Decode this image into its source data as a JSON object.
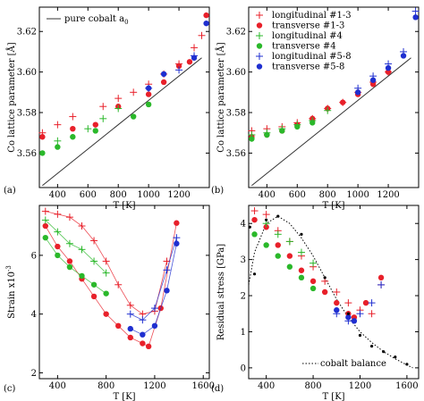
{
  "panels": [
    {
      "id": "a",
      "label": "(a)",
      "xlabel": "T [K]",
      "ylabel": "Co lattice parameter [Å]",
      "xticks": [
        "400",
        "600",
        "800",
        "1000",
        "1200"
      ],
      "yticks": [
        "3.56",
        "3.58",
        "3.60",
        "3.62"
      ],
      "legend": [
        {
          "label": "pure cobalt a",
          "sub": "0",
          "marker": "line"
        }
      ]
    },
    {
      "id": "b",
      "label": "(b)",
      "xlabel": "T [K]",
      "ylabel": "Co lattice parameter [Å]",
      "xticks": [
        "400",
        "600",
        "800",
        "1000",
        "1200"
      ],
      "yticks": [
        "3.56",
        "3.58",
        "3.60",
        "3.62"
      ],
      "legend": [
        {
          "label": "longitudinal #1-3",
          "marker": "plus-red"
        },
        {
          "label": "transverse #1-3",
          "marker": "circle-red"
        },
        {
          "label": "longitudinal #4",
          "marker": "plus-green"
        },
        {
          "label": "transverse #4",
          "marker": "circle-green"
        },
        {
          "label": "longitudinal #5-8",
          "marker": "plus-blue"
        },
        {
          "label": "transverse #5-8",
          "marker": "circle-blue"
        }
      ]
    },
    {
      "id": "c",
      "label": "(c)",
      "xlabel": "T [K]",
      "ylabel": "Strain x10",
      "ylabel_sup": "-3",
      "xticks": [
        "400",
        "800",
        "1200",
        "1600"
      ],
      "yticks": [
        "2",
        "4",
        "6"
      ],
      "legend": []
    },
    {
      "id": "d",
      "label": "(d)",
      "xlabel": "T [K]",
      "ylabel": "Residual stress [GPa]",
      "xticks": [
        "400",
        "800",
        "1200",
        "1600"
      ],
      "yticks": [
        "0",
        "1",
        "2",
        "3",
        "4"
      ],
      "legend": [
        {
          "label": "cobalt balance",
          "marker": "dotted"
        }
      ]
    }
  ],
  "colors": {
    "red": "#e8202a",
    "green": "#2ab82a",
    "blue": "#1f2fd0",
    "black": "#000000",
    "curve": "#333333"
  },
  "chart_data": [
    {
      "type": "scatter",
      "panel": "a",
      "xlim": [
        280,
        1400
      ],
      "ylim": [
        3.543,
        3.632
      ],
      "series": [
        {
          "name": "pure cobalt a0",
          "style": "line",
          "x": [
            300,
            500,
            700,
            900,
            1100,
            1300,
            1350
          ],
          "y": [
            3.544,
            3.556,
            3.568,
            3.58,
            3.592,
            3.604,
            3.607
          ]
        },
        {
          "name": "longitudinal #1-3",
          "style": "plus",
          "color": "red",
          "x": [
            300,
            400,
            500,
            700,
            800,
            900,
            1000,
            1100,
            1200,
            1300,
            1350
          ],
          "y": [
            3.57,
            3.574,
            3.578,
            3.583,
            3.587,
            3.59,
            3.594,
            3.599,
            3.604,
            3.612,
            3.618
          ]
        },
        {
          "name": "transverse #1-3",
          "style": "circle",
          "color": "red",
          "x": [
            300,
            500,
            650,
            800,
            1000,
            1100,
            1200,
            1270,
            1380
          ],
          "y": [
            3.568,
            3.572,
            3.574,
            3.583,
            3.589,
            3.595,
            3.603,
            3.605,
            3.628
          ]
        },
        {
          "name": "longitudinal #4",
          "style": "plus",
          "color": "green",
          "x": [
            400,
            600,
            700,
            800
          ],
          "y": [
            3.566,
            3.572,
            3.577,
            3.582
          ]
        },
        {
          "name": "transverse #4",
          "style": "circle",
          "color": "green",
          "x": [
            300,
            400,
            500,
            650,
            900,
            1000
          ],
          "y": [
            3.56,
            3.563,
            3.568,
            3.571,
            3.578,
            3.584
          ]
        },
        {
          "name": "longitudinal #5-8",
          "style": "plus",
          "color": "blue",
          "x": [
            1000,
            1200,
            1300
          ],
          "y": [
            3.592,
            3.601,
            3.608
          ]
        },
        {
          "name": "transverse #5-8",
          "style": "circle",
          "color": "blue",
          "x": [
            1000,
            1100,
            1300,
            1380
          ],
          "y": [
            3.592,
            3.599,
            3.607,
            3.624
          ]
        }
      ]
    },
    {
      "type": "scatter",
      "panel": "b",
      "xlim": [
        280,
        1400
      ],
      "ylim": [
        3.543,
        3.632
      ],
      "series": [
        {
          "name": "pure cobalt a0",
          "style": "line",
          "x": [
            300,
            500,
            700,
            900,
            1100,
            1300,
            1350
          ],
          "y": [
            3.544,
            3.556,
            3.568,
            3.58,
            3.592,
            3.604,
            3.607
          ]
        },
        {
          "name": "longitudinal #1-3",
          "style": "plus",
          "color": "red",
          "x": [
            300,
            400,
            500,
            600,
            700,
            800,
            900,
            1000,
            1100,
            1200
          ],
          "y": [
            3.571,
            3.572,
            3.573,
            3.575,
            3.577,
            3.582,
            3.585,
            3.59,
            3.595,
            3.6
          ]
        },
        {
          "name": "transverse #1-3",
          "style": "circle",
          "color": "red",
          "x": [
            300,
            400,
            500,
            600,
            700,
            800,
            900,
            1000,
            1100,
            1200
          ],
          "y": [
            3.568,
            3.569,
            3.571,
            3.574,
            3.577,
            3.582,
            3.585,
            3.589,
            3.594,
            3.6
          ]
        },
        {
          "name": "longitudinal #4",
          "style": "plus",
          "color": "green",
          "x": [
            300,
            400,
            500,
            600,
            700,
            800
          ],
          "y": [
            3.569,
            3.57,
            3.572,
            3.574,
            3.576,
            3.581
          ]
        },
        {
          "name": "transverse #4",
          "style": "circle",
          "color": "green",
          "x": [
            300,
            400,
            500,
            600,
            700
          ],
          "y": [
            3.567,
            3.569,
            3.571,
            3.573,
            3.575
          ]
        },
        {
          "name": "longitudinal #5-8",
          "style": "plus",
          "color": "blue",
          "x": [
            1000,
            1100,
            1200,
            1300,
            1380
          ],
          "y": [
            3.592,
            3.598,
            3.604,
            3.61,
            3.63
          ]
        },
        {
          "name": "transverse #5-8",
          "style": "circle",
          "color": "blue",
          "x": [
            1000,
            1100,
            1200,
            1300,
            1380
          ],
          "y": [
            3.59,
            3.596,
            3.602,
            3.608,
            3.627
          ]
        }
      ]
    },
    {
      "type": "scatter",
      "panel": "c",
      "xlim": [
        250,
        1650
      ],
      "ylim": [
        1.8,
        7.7
      ],
      "series": [
        {
          "name": "longitudinal #1-3",
          "style": "plus-line",
          "color": "red",
          "x": [
            300,
            400,
            500,
            600,
            700,
            800,
            900,
            1000,
            1100,
            1200,
            1300
          ],
          "y": [
            7.5,
            7.4,
            7.3,
            7.0,
            6.5,
            5.8,
            5.0,
            4.3,
            4.0,
            4.1,
            5.8
          ]
        },
        {
          "name": "transverse #1-3",
          "style": "circle-line",
          "color": "red",
          "x": [
            300,
            400,
            500,
            600,
            700,
            800,
            900,
            1000,
            1100,
            1150,
            1250,
            1380
          ],
          "y": [
            7.0,
            6.3,
            5.8,
            5.2,
            4.6,
            4.0,
            3.6,
            3.2,
            3.0,
            2.9,
            4.2,
            7.1
          ]
        },
        {
          "name": "longitudinal #4",
          "style": "plus-line",
          "color": "green",
          "x": [
            300,
            400,
            500,
            600,
            700,
            800
          ],
          "y": [
            7.2,
            6.8,
            6.4,
            6.2,
            5.8,
            5.4
          ]
        },
        {
          "name": "transverse #4",
          "style": "circle-line",
          "color": "green",
          "x": [
            300,
            400,
            500,
            600,
            700,
            800
          ],
          "y": [
            6.6,
            6.0,
            5.6,
            5.3,
            5.0,
            4.7
          ]
        },
        {
          "name": "longitudinal #5-8",
          "style": "plus-line",
          "color": "blue",
          "x": [
            1000,
            1100,
            1200,
            1300,
            1380
          ],
          "y": [
            4.0,
            3.8,
            4.2,
            5.5,
            6.6
          ]
        },
        {
          "name": "transverse #5-8",
          "style": "circle-line",
          "color": "blue",
          "x": [
            1000,
            1100,
            1200,
            1300,
            1380
          ],
          "y": [
            3.5,
            3.3,
            3.6,
            4.8,
            6.4
          ]
        }
      ]
    },
    {
      "type": "scatter",
      "panel": "d",
      "xlim": [
        250,
        1700
      ],
      "ylim": [
        -0.3,
        4.5
      ],
      "series": [
        {
          "name": "cobalt balance",
          "style": "dotted",
          "color": "black",
          "x": [
            250,
            300,
            400,
            500,
            600,
            700,
            800,
            900,
            1000,
            1100,
            1200,
            1300,
            1400,
            1500,
            1600,
            1650
          ],
          "y": [
            2.3,
            3.2,
            4.0,
            4.2,
            4.0,
            3.6,
            3.1,
            2.5,
            1.9,
            1.4,
            1.0,
            0.7,
            0.45,
            0.25,
            0.08,
            0.0
          ]
        },
        {
          "name": "longitudinal #1-3",
          "style": "plus",
          "color": "red",
          "x": [
            300,
            400,
            500,
            600,
            700,
            800,
            900,
            1000,
            1100,
            1200,
            1300,
            1380
          ],
          "y": [
            4.35,
            4.25,
            3.8,
            3.5,
            3.1,
            2.8,
            2.4,
            2.1,
            1.8,
            1.6,
            1.5,
            2.3
          ]
        },
        {
          "name": "transverse #1-3",
          "style": "circle",
          "color": "red",
          "x": [
            300,
            400,
            500,
            600,
            700,
            800,
            900,
            1000,
            1100,
            1150,
            1250,
            1380
          ],
          "y": [
            4.1,
            3.9,
            3.4,
            3.1,
            2.7,
            2.4,
            2.1,
            1.8,
            1.5,
            1.4,
            1.8,
            2.5
          ]
        },
        {
          "name": "longitudinal #4",
          "style": "plus",
          "color": "green",
          "x": [
            400,
            500,
            600,
            700,
            800
          ],
          "y": [
            4.0,
            3.7,
            3.5,
            3.2,
            2.9
          ]
        },
        {
          "name": "transverse #4",
          "style": "circle",
          "color": "green",
          "x": [
            300,
            400,
            500,
            600,
            700,
            800
          ],
          "y": [
            3.7,
            3.4,
            3.1,
            2.8,
            2.5,
            2.2
          ]
        },
        {
          "name": "longitudinal #5-8",
          "style": "plus",
          "color": "blue",
          "x": [
            1000,
            1100,
            1200,
            1300,
            1380
          ],
          "y": [
            1.5,
            1.3,
            1.5,
            1.8,
            2.3
          ]
        },
        {
          "name": "transverse #5-8",
          "style": "circle",
          "color": "blue",
          "x": [
            1000,
            1100,
            1150
          ],
          "y": [
            1.6,
            1.4,
            1.3
          ]
        },
        {
          "name": "black markers",
          "style": "dot",
          "color": "black",
          "x": [
            260,
            300,
            400,
            500,
            700,
            900,
            1100,
            1200,
            1300,
            1400,
            1500,
            1600
          ],
          "y": [
            3.9,
            2.6,
            4.1,
            4.2,
            3.7,
            2.5,
            1.5,
            0.9,
            0.6,
            0.45,
            0.3,
            0.1
          ]
        }
      ]
    }
  ]
}
